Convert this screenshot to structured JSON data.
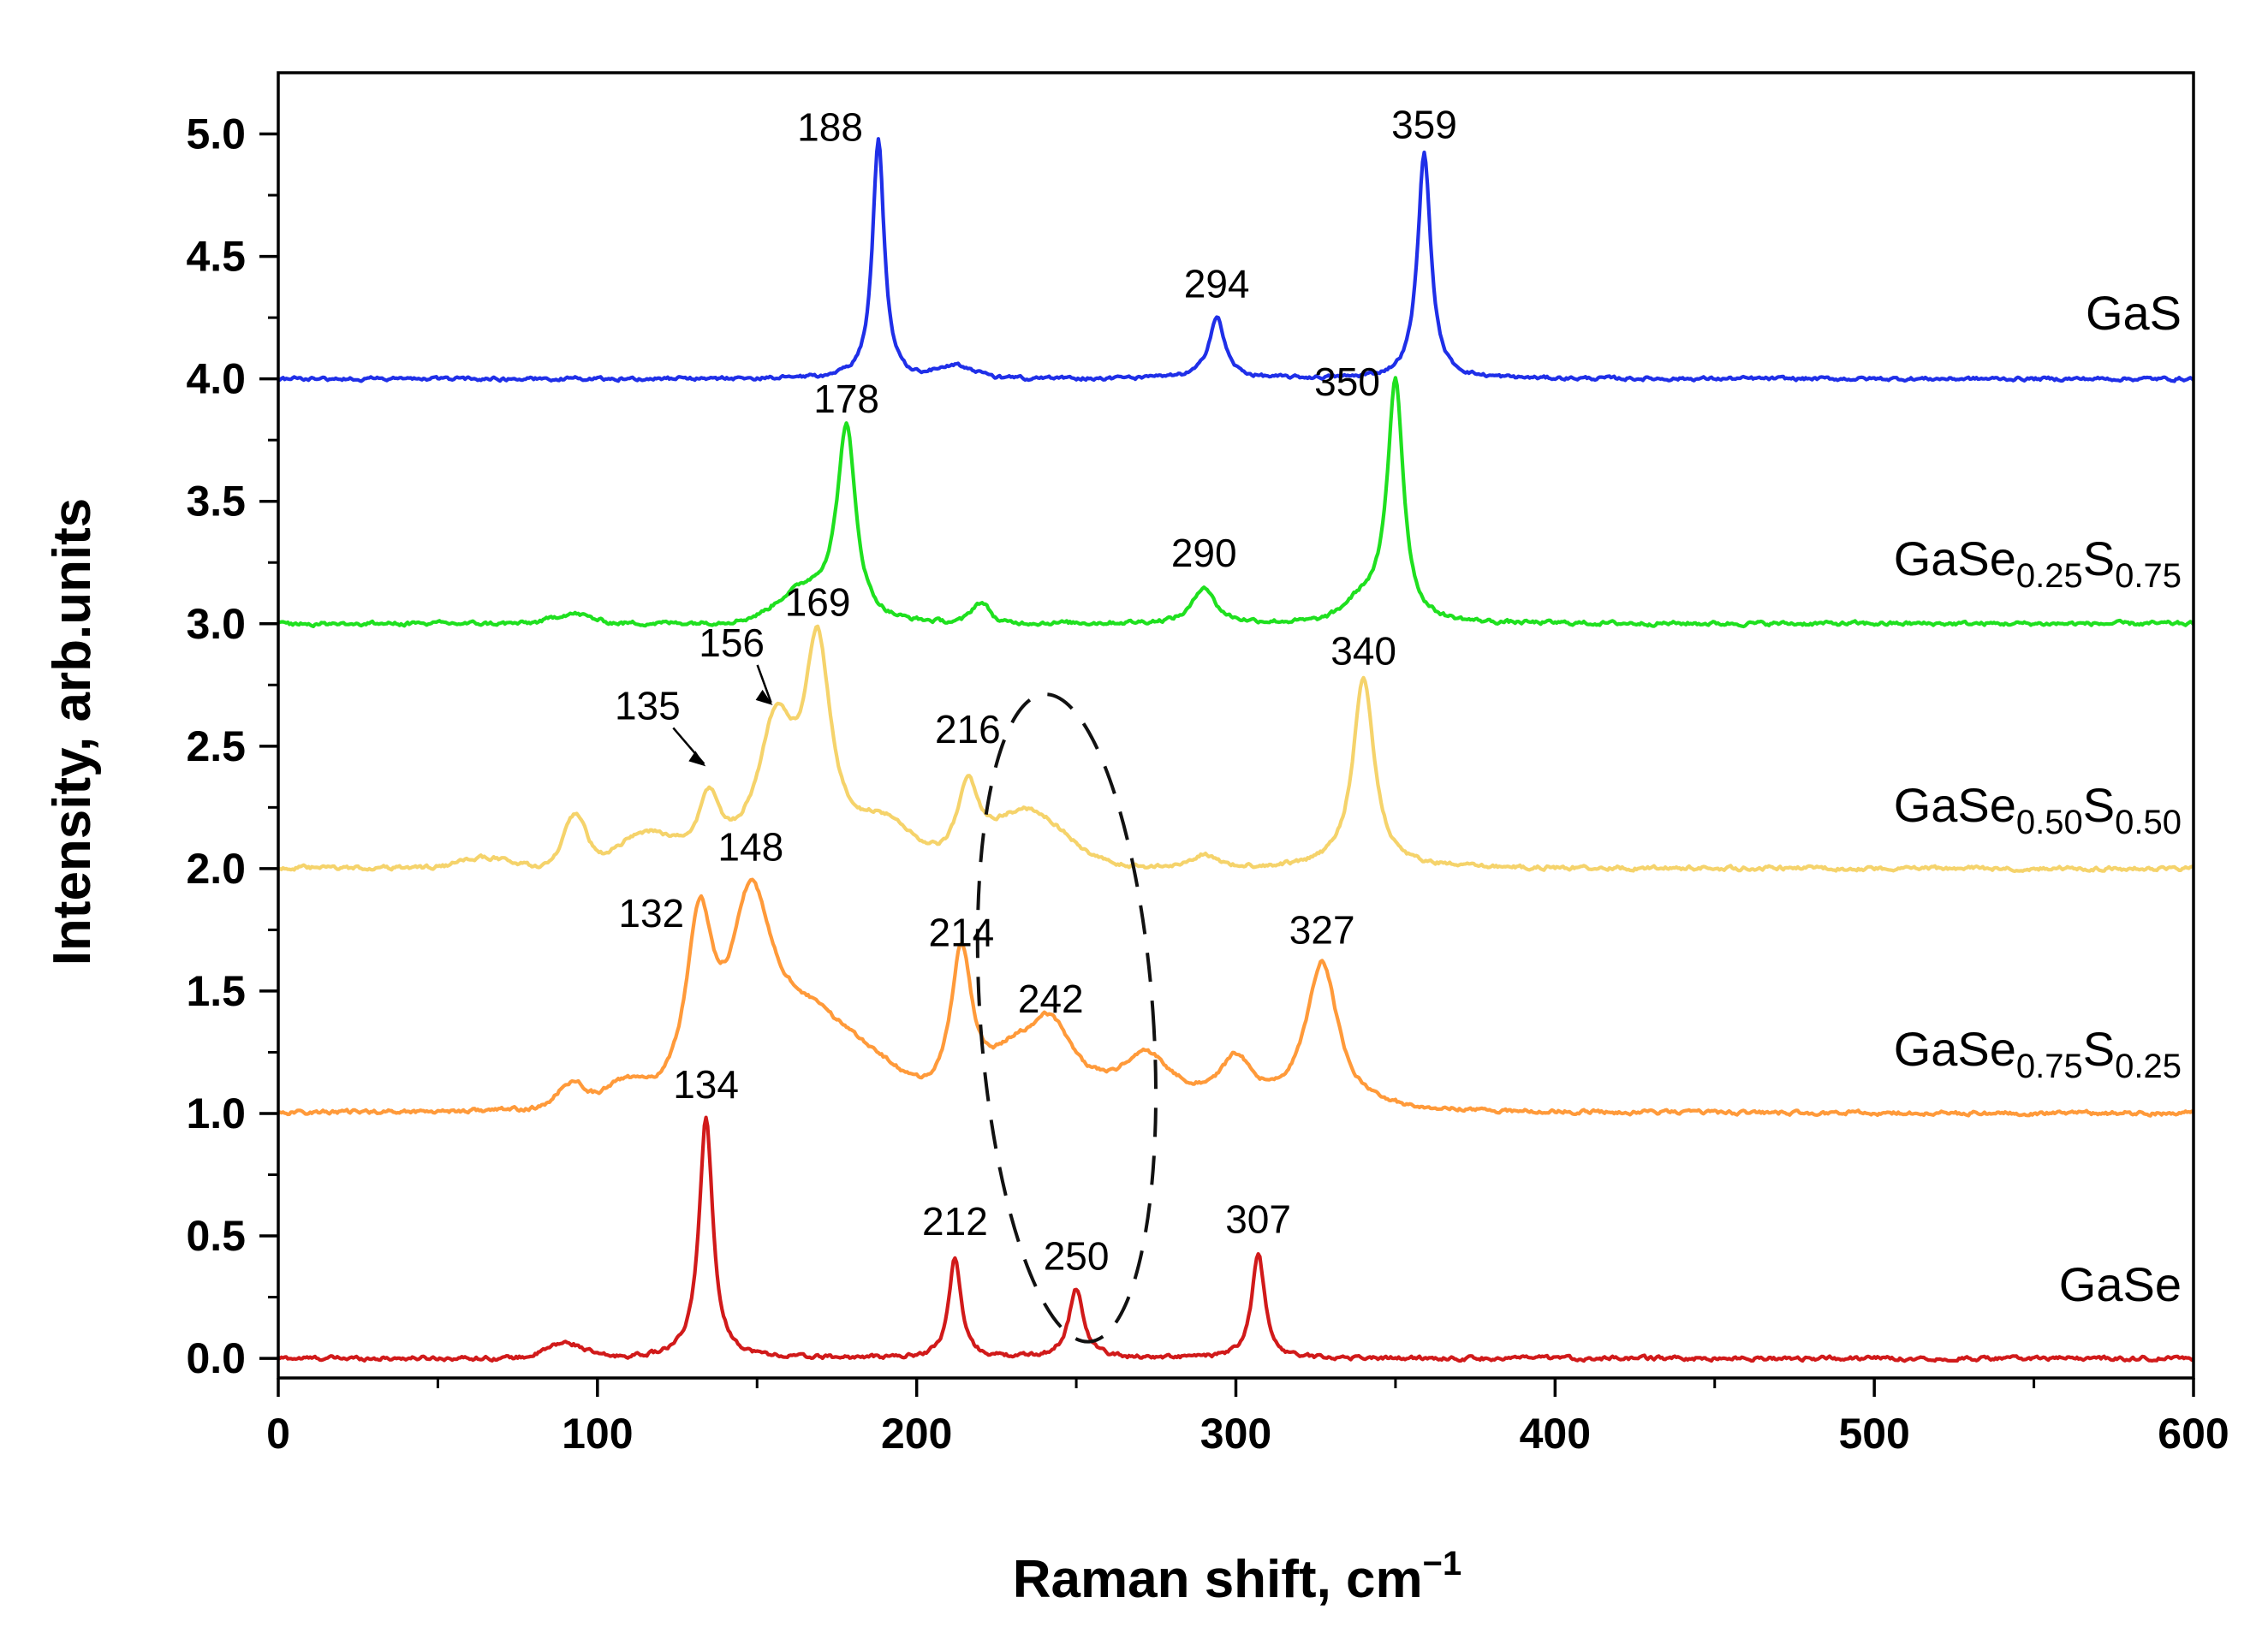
{
  "chart_data": {
    "type": "line",
    "title": "",
    "xlabel": "Raman shift, cm",
    "xlabel_sup": "−1",
    "ylabel": "Intensity, arb.units",
    "xlim": [
      0,
      600
    ],
    "ylim": [
      -0.08,
      5.25
    ],
    "x_ticks": [
      "0",
      "100",
      "200",
      "300",
      "400",
      "500",
      "600"
    ],
    "y_ticks": [
      "0.0",
      "0.5",
      "1.0",
      "1.5",
      "2.0",
      "2.5",
      "3.0",
      "3.5",
      "4.0",
      "4.5",
      "5.0"
    ],
    "grid": false,
    "series": [
      {
        "name": "GaSe",
        "label_parts": [
          {
            "t": "GaSe"
          }
        ],
        "color": "#d11a1a",
        "offset": 0.0,
        "noise": 0.008,
        "baseline_bumps": [
          {
            "x": 90,
            "h": 0.06,
            "w": 8
          }
        ],
        "peaks": [
          {
            "x": 134,
            "h": 0.98,
            "w": 2.6
          },
          {
            "x": 212,
            "h": 0.41,
            "w": 2.3
          },
          {
            "x": 250,
            "h": 0.28,
            "w": 2.8
          },
          {
            "x": 307,
            "h": 0.43,
            "w": 2.4
          }
        ],
        "peak_labels": [
          "134",
          "212",
          "250",
          "307"
        ]
      },
      {
        "name": "GaSe0.75S0.25",
        "label_parts": [
          {
            "t": "GaSe"
          },
          {
            "t": "0.75",
            "sub": true
          },
          {
            "t": "S"
          },
          {
            "t": "0.25",
            "sub": true
          }
        ],
        "color": "#ff9a3a",
        "offset": 1.0,
        "noise": 0.008,
        "baseline_bumps": [
          {
            "x": 92,
            "h": 0.1,
            "w": 6
          },
          {
            "x": 108,
            "h": 0.08,
            "w": 8
          },
          {
            "x": 165,
            "h": 0.3,
            "w": 16
          },
          {
            "x": 185,
            "h": 0.15,
            "w": 14
          }
        ],
        "peaks": [
          {
            "x": 132,
            "h": 0.72,
            "w": 5
          },
          {
            "x": 148,
            "h": 0.78,
            "w": 8
          },
          {
            "x": 214,
            "h": 0.6,
            "w": 4
          },
          {
            "x": 242,
            "h": 0.3,
            "w": 9
          },
          {
            "x": 230,
            "h": 0.15,
            "w": 10
          },
          {
            "x": 272,
            "h": 0.2,
            "w": 10
          },
          {
            "x": 300,
            "h": 0.18,
            "w": 6
          },
          {
            "x": 327,
            "h": 0.6,
            "w": 6
          }
        ],
        "peak_labels": [
          "132",
          "148",
          "214",
          "242",
          "327"
        ]
      },
      {
        "name": "GaSe0.50S0.50",
        "label_parts": [
          {
            "t": "GaSe"
          },
          {
            "t": "0.50",
            "sub": true
          },
          {
            "t": "S"
          },
          {
            "t": "0.50",
            "sub": true
          }
        ],
        "color": "#f5d36b",
        "offset": 2.0,
        "noise": 0.008,
        "baseline_bumps": [
          {
            "x": 65,
            "h": 0.04,
            "w": 10
          },
          {
            "x": 93,
            "h": 0.2,
            "w": 5
          },
          {
            "x": 115,
            "h": 0.12,
            "w": 12
          },
          {
            "x": 190,
            "h": 0.15,
            "w": 12
          },
          {
            "x": 235,
            "h": 0.22,
            "w": 16
          },
          {
            "x": 290,
            "h": 0.05,
            "w": 6
          }
        ],
        "peaks": [
          {
            "x": 135,
            "h": 0.25,
            "w": 4
          },
          {
            "x": 156,
            "h": 0.55,
            "w": 7
          },
          {
            "x": 169,
            "h": 0.85,
            "w": 5
          },
          {
            "x": 216,
            "h": 0.3,
            "w": 4
          },
          {
            "x": 340,
            "h": 0.78,
            "w": 4
          }
        ],
        "peak_labels": [
          "135",
          "156",
          "169",
          "216",
          "340"
        ]
      },
      {
        "name": "GaSe0.25S0.75",
        "label_parts": [
          {
            "t": "GaSe"
          },
          {
            "t": "0.25",
            "sub": true
          },
          {
            "t": "S"
          },
          {
            "t": "0.75",
            "sub": true
          }
        ],
        "color": "#1fe01f",
        "offset": 3.0,
        "noise": 0.008,
        "baseline_bumps": [
          {
            "x": 92,
            "h": 0.04,
            "w": 8
          },
          {
            "x": 165,
            "h": 0.12,
            "w": 12
          },
          {
            "x": 220,
            "h": 0.08,
            "w": 4
          },
          {
            "x": 340,
            "h": 0.08,
            "w": 8
          }
        ],
        "peaks": [
          {
            "x": 178,
            "h": 0.78,
            "w": 3.5
          },
          {
            "x": 290,
            "h": 0.15,
            "w": 4
          },
          {
            "x": 350,
            "h": 0.99,
            "w": 3
          }
        ],
        "peak_labels": [
          "178",
          "290",
          "350"
        ]
      },
      {
        "name": "GaS",
        "label_parts": [
          {
            "t": "GaS"
          }
        ],
        "color": "#1f2fe8",
        "offset": 4.0,
        "noise": 0.007,
        "baseline_bumps": [
          {
            "x": 212,
            "h": 0.05,
            "w": 8
          }
        ],
        "peaks": [
          {
            "x": 188,
            "h": 0.98,
            "w": 2.2
          },
          {
            "x": 294,
            "h": 0.25,
            "w": 3
          },
          {
            "x": 359,
            "h": 0.92,
            "w": 2.5
          }
        ],
        "peak_labels": [
          "188",
          "294",
          "359"
        ]
      }
    ],
    "annotations": [
      {
        "text": "188",
        "x": 188,
        "y": 5.0,
        "anchor": "left"
      },
      {
        "text": "359",
        "x": 359,
        "y": 4.92,
        "anchor": "top"
      },
      {
        "text": "294",
        "x": 294,
        "y": 4.27,
        "anchor": "top"
      },
      {
        "text": "178",
        "x": 178,
        "y": 3.8,
        "anchor": "top"
      },
      {
        "text": "350",
        "x": 350,
        "y": 3.96,
        "anchor": "left"
      },
      {
        "text": "290",
        "x": 290,
        "y": 3.17,
        "anchor": "top"
      },
      {
        "text": "169",
        "x": 169,
        "y": 2.97,
        "anchor": "top"
      },
      {
        "text": "156",
        "x": 156,
        "y": 2.65,
        "anchor": "arrow"
      },
      {
        "text": "135",
        "x": 135,
        "y": 2.4,
        "anchor": "arrow"
      },
      {
        "text": "216",
        "x": 216,
        "y": 2.45,
        "anchor": "top"
      },
      {
        "text": "340",
        "x": 340,
        "y": 2.77,
        "anchor": "top"
      },
      {
        "text": "132",
        "x": 132,
        "y": 1.79,
        "anchor": "left"
      },
      {
        "text": "148",
        "x": 148,
        "y": 1.97,
        "anchor": "top"
      },
      {
        "text": "214",
        "x": 214,
        "y": 1.62,
        "anchor": "top"
      },
      {
        "text": "242",
        "x": 242,
        "y": 1.35,
        "anchor": "top"
      },
      {
        "text": "327",
        "x": 327,
        "y": 1.63,
        "anchor": "top"
      },
      {
        "text": "134",
        "x": 134,
        "y": 1.0,
        "anchor": "top"
      },
      {
        "text": "212",
        "x": 212,
        "y": 0.44,
        "anchor": "top"
      },
      {
        "text": "250",
        "x": 250,
        "y": 0.3,
        "anchor": "top"
      },
      {
        "text": "307",
        "x": 307,
        "y": 0.45,
        "anchor": "top"
      }
    ]
  }
}
